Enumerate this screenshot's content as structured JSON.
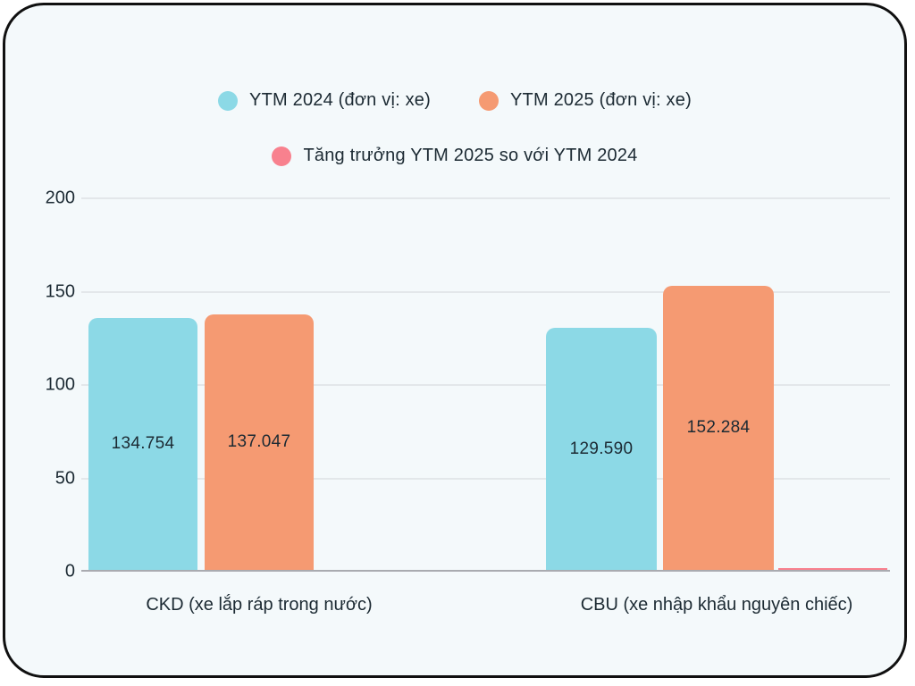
{
  "colors": {
    "card_background": "#f4f9fb",
    "card_border": "#101010",
    "gridline": "#e3e7ea",
    "baseline": "#a9abb0",
    "text": "#1c2a33",
    "series_teal": "#8cd9e6",
    "series_orange": "#f59a72",
    "series_pink": "#f8818e"
  },
  "chart_data": {
    "type": "bar",
    "title": "",
    "xlabel": "",
    "ylabel": "",
    "categories": [
      "CKD (xe lắp ráp trong nước)",
      "CBU (xe nhập khẩu nguyên chiếc)"
    ],
    "series": [
      {
        "name": "YTM 2024 (đơn vị: xe)",
        "values": [
          134.754,
          129.59
        ],
        "labels": [
          "134.754",
          "129.590"
        ],
        "color": "#8cd9e6"
      },
      {
        "name": "YTM 2025 (đơn vị: xe)",
        "values": [
          137.047,
          152.284
        ],
        "labels": [
          "137.047",
          "152.284"
        ],
        "color": "#f59a72"
      },
      {
        "name": "Tăng trưởng YTM 2025 so với YTM 2024",
        "values": [
          0,
          1
        ],
        "labels": [
          "",
          ""
        ],
        "color": "#f8818e"
      }
    ],
    "yticks": [
      0,
      50,
      100,
      150,
      200
    ],
    "ylim": [
      0,
      200
    ],
    "grid": true,
    "legend_position": "top"
  }
}
